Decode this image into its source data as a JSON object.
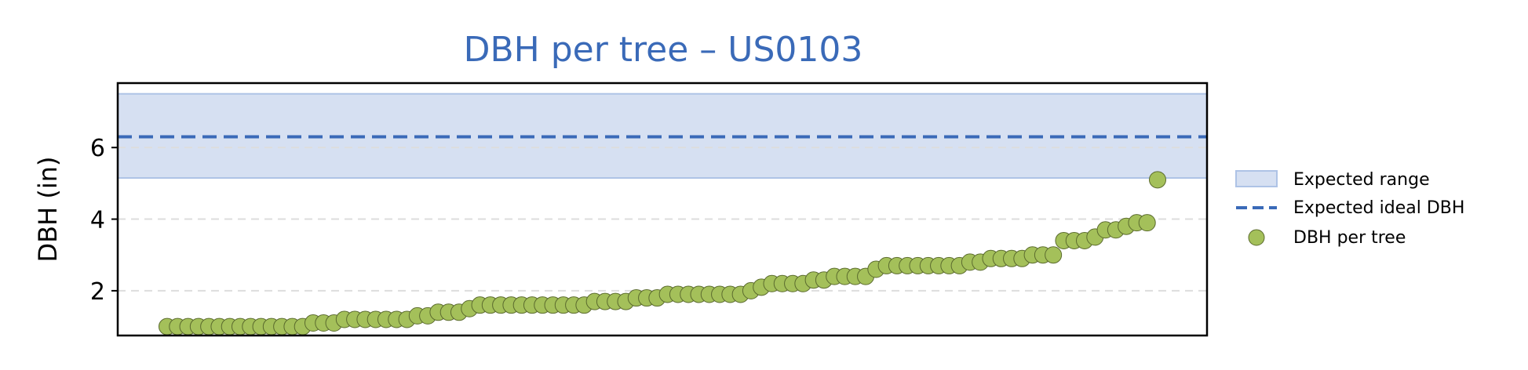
{
  "chart_data": {
    "type": "scatter",
    "title": "DBH per tree – US0103",
    "xlabel": "",
    "ylabel": "DBH (in)",
    "ylim": [
      0.75,
      7.8
    ],
    "yticks": [
      2,
      4,
      6
    ],
    "y_tick_labels": [
      "2",
      "4",
      "6"
    ],
    "grid": "horizontal dashed, light gray",
    "legend_position": "right, outside plot",
    "expected_range": {
      "label": "Expected range",
      "min": 5.15,
      "max": 7.5,
      "color": "#d6e0f2"
    },
    "expected_ideal": {
      "label": "Expected ideal DBH",
      "value": 6.3,
      "color": "#3a6ab8"
    },
    "series": [
      {
        "name": "DBH per tree",
        "color": "#a4c05a",
        "values": [
          1.0,
          1.0,
          1.0,
          1.0,
          1.0,
          1.0,
          1.0,
          1.0,
          1.0,
          1.0,
          1.0,
          1.0,
          1.0,
          1.0,
          1.1,
          1.1,
          1.1,
          1.2,
          1.2,
          1.2,
          1.2,
          1.2,
          1.2,
          1.2,
          1.3,
          1.3,
          1.4,
          1.4,
          1.4,
          1.5,
          1.6,
          1.6,
          1.6,
          1.6,
          1.6,
          1.6,
          1.6,
          1.6,
          1.6,
          1.6,
          1.6,
          1.7,
          1.7,
          1.7,
          1.7,
          1.8,
          1.8,
          1.8,
          1.9,
          1.9,
          1.9,
          1.9,
          1.9,
          1.9,
          1.9,
          1.9,
          2.0,
          2.1,
          2.2,
          2.2,
          2.2,
          2.2,
          2.3,
          2.3,
          2.4,
          2.4,
          2.4,
          2.4,
          2.6,
          2.7,
          2.7,
          2.7,
          2.7,
          2.7,
          2.7,
          2.7,
          2.7,
          2.8,
          2.8,
          2.9,
          2.9,
          2.9,
          2.9,
          3.0,
          3.0,
          3.0,
          3.4,
          3.4,
          3.4,
          3.5,
          3.7,
          3.7,
          3.8,
          3.9,
          3.9,
          5.1
        ]
      }
    ],
    "legend": [
      "Expected range",
      "Expected ideal DBH",
      "DBH per tree"
    ]
  }
}
